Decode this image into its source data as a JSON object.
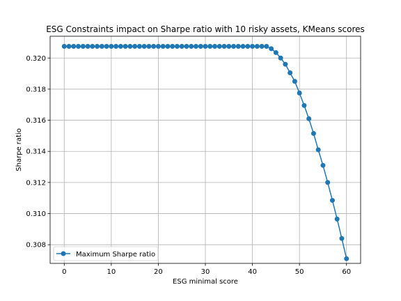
{
  "chart_data": {
    "type": "line",
    "title": "ESG Constraints impact on Sharpe ratio with 10 risky assets, KMeans scores",
    "xlabel": "ESG minimal score",
    "ylabel": "Sharpe ratio",
    "xlim": [
      -3,
      63
    ],
    "ylim": [
      0.3068,
      0.3214
    ],
    "xticks": [
      0,
      10,
      20,
      30,
      40,
      50,
      60
    ],
    "yticks": [
      0.308,
      0.31,
      0.312,
      0.314,
      0.316,
      0.318,
      0.32
    ],
    "ytick_labels": [
      "0.308",
      "0.310",
      "0.312",
      "0.314",
      "0.316",
      "0.318",
      "0.320"
    ],
    "grid": true,
    "legend_position": "lower-left",
    "series_color": "#1f77b4",
    "series": [
      {
        "name": "Maximum Sharpe ratio",
        "x": [
          0,
          1,
          2,
          3,
          4,
          5,
          6,
          7,
          8,
          9,
          10,
          11,
          12,
          13,
          14,
          15,
          16,
          17,
          18,
          19,
          20,
          21,
          22,
          23,
          24,
          25,
          26,
          27,
          28,
          29,
          30,
          31,
          32,
          33,
          34,
          35,
          36,
          37,
          38,
          39,
          40,
          41,
          42,
          43,
          44,
          45,
          46,
          47,
          48,
          49,
          50,
          51,
          52,
          53,
          54,
          55,
          56,
          57,
          58,
          59,
          60
        ],
        "values": [
          0.32075,
          0.32075,
          0.32075,
          0.32075,
          0.32075,
          0.32075,
          0.32075,
          0.32075,
          0.32075,
          0.32075,
          0.32075,
          0.32075,
          0.32075,
          0.32075,
          0.32075,
          0.32075,
          0.32075,
          0.32075,
          0.32075,
          0.32075,
          0.32075,
          0.32075,
          0.32075,
          0.32075,
          0.32075,
          0.32075,
          0.32075,
          0.32075,
          0.32075,
          0.32075,
          0.32075,
          0.32075,
          0.32075,
          0.32075,
          0.32075,
          0.32075,
          0.32075,
          0.32075,
          0.32075,
          0.32075,
          0.32075,
          0.32075,
          0.32075,
          0.32075,
          0.3206,
          0.32035,
          0.32,
          0.3196,
          0.31905,
          0.3185,
          0.31775,
          0.31695,
          0.3161,
          0.31515,
          0.3141,
          0.3131,
          0.312,
          0.31085,
          0.30965,
          0.3084,
          0.3071
        ]
      }
    ]
  }
}
